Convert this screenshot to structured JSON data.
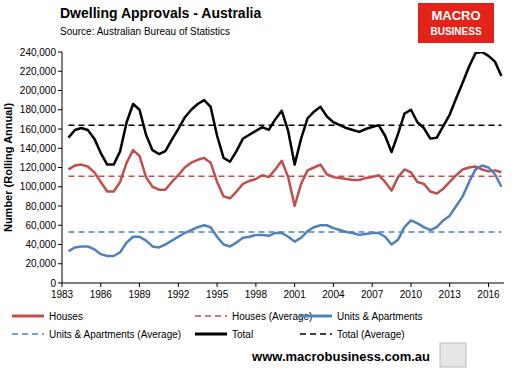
{
  "chart_data": {
    "type": "line",
    "title": "Dwelling Approvals - Australia",
    "subtitle": "Source: Australian Bureau of Statistics",
    "y_label": "Number (Rolling Annual)",
    "logo_text": [
      "MACRO",
      "BUSINESS"
    ],
    "footer": "www.macrobusiness.com.au",
    "grid": false,
    "legend": "bottom",
    "xlim": [
      1983,
      2017.2
    ],
    "xticks": [
      1983,
      1986,
      1989,
      1992,
      1995,
      1998,
      2001,
      2004,
      2007,
      2010,
      2013,
      2016
    ],
    "ylim": [
      0,
      240000
    ],
    "yticks": [
      0,
      {
        "value": 20000,
        "label": "20,000"
      },
      {
        "value": 40000,
        "label": "40,000"
      },
      {
        "value": 60000,
        "label": "60,000"
      },
      {
        "value": 80000,
        "label": "80,000"
      },
      {
        "value": 100000,
        "label": "100,000"
      },
      {
        "value": 120000,
        "label": "120,000"
      },
      {
        "value": 140000,
        "label": "140,000"
      },
      {
        "value": 160000,
        "label": "160,000"
      },
      {
        "value": 180000,
        "label": "180,000"
      },
      {
        "value": 200000,
        "label": "200,000"
      },
      {
        "value": 220000,
        "label": "220,000"
      },
      {
        "value": 240000,
        "label": "240,000"
      }
    ],
    "x": [
      1983.5,
      1984,
      1984.5,
      1985,
      1985.5,
      1986,
      1986.5,
      1987,
      1987.5,
      1988,
      1988.5,
      1989,
      1989.5,
      1990,
      1990.5,
      1991,
      1991.5,
      1992,
      1992.5,
      1993,
      1993.5,
      1994,
      1994.5,
      1995,
      1995.5,
      1996,
      1996.5,
      1997,
      1997.5,
      1998,
      1998.5,
      1999,
      1999.5,
      2000,
      2000.5,
      2001,
      2001.5,
      2002,
      2002.5,
      2003,
      2003.5,
      2004,
      2004.5,
      2005,
      2005.5,
      2006,
      2006.5,
      2007,
      2007.5,
      2008,
      2008.5,
      2009,
      2009.5,
      2010,
      2010.5,
      2011,
      2011.5,
      2012,
      2012.5,
      2013,
      2013.5,
      2014,
      2014.5,
      2015,
      2015.5,
      2016,
      2016.5,
      2017
    ],
    "series": [
      {
        "name": "Houses",
        "color": "#c0504d",
        "line_style": "solid",
        "values": [
          118000,
          122000,
          123000,
          121000,
          115000,
          105000,
          95000,
          95000,
          105000,
          125000,
          138000,
          132000,
          110000,
          100000,
          97000,
          97000,
          105000,
          112000,
          120000,
          125000,
          128000,
          130000,
          125000,
          105000,
          90000,
          88000,
          95000,
          103000,
          106000,
          108000,
          112000,
          110000,
          118000,
          127000,
          110000,
          80000,
          103000,
          117000,
          120000,
          123000,
          113000,
          110000,
          109000,
          108000,
          107000,
          107000,
          109000,
          110000,
          112000,
          105000,
          96000,
          110000,
          118000,
          115000,
          105000,
          103000,
          95000,
          93000,
          98000,
          105000,
          112000,
          118000,
          120000,
          121000,
          118000,
          116000,
          117000,
          115000
        ]
      },
      {
        "name": "Houses (Average)",
        "color": "#c0504d",
        "line_style": "dashed",
        "values": [
          111000,
          111000,
          111000,
          111000,
          111000,
          111000,
          111000,
          111000,
          111000,
          111000,
          111000,
          111000,
          111000,
          111000,
          111000,
          111000,
          111000,
          111000,
          111000,
          111000,
          111000,
          111000,
          111000,
          111000,
          111000,
          111000,
          111000,
          111000,
          111000,
          111000,
          111000,
          111000,
          111000,
          111000,
          111000,
          111000,
          111000,
          111000,
          111000,
          111000,
          111000,
          111000,
          111000,
          111000,
          111000,
          111000,
          111000,
          111000,
          111000,
          111000,
          111000,
          111000,
          111000,
          111000,
          111000,
          111000,
          111000,
          111000,
          111000,
          111000,
          111000,
          111000,
          111000,
          111000,
          111000,
          111000,
          111000,
          111000
        ]
      },
      {
        "name": "Units & Apartments",
        "color": "#4f81bd",
        "line_style": "solid",
        "values": [
          33000,
          37000,
          38000,
          38000,
          35000,
          30000,
          28000,
          28000,
          32000,
          42000,
          48000,
          48000,
          44000,
          38000,
          37000,
          40000,
          44000,
          48000,
          52000,
          55000,
          58000,
          60000,
          58000,
          48000,
          40000,
          38000,
          42000,
          47000,
          48000,
          50000,
          50000,
          49000,
          52000,
          52000,
          48000,
          43000,
          47000,
          54000,
          58000,
          60000,
          60000,
          57000,
          55000,
          53000,
          52000,
          50000,
          51000,
          52000,
          52000,
          48000,
          40000,
          45000,
          58000,
          65000,
          62000,
          58000,
          55000,
          58000,
          65000,
          70000,
          80000,
          90000,
          105000,
          118000,
          122000,
          120000,
          113000,
          100000
        ]
      },
      {
        "name": "Units & Apartments (Average)",
        "color": "#4f81bd",
        "line_style": "dashed",
        "values": [
          53000,
          53000,
          53000,
          53000,
          53000,
          53000,
          53000,
          53000,
          53000,
          53000,
          53000,
          53000,
          53000,
          53000,
          53000,
          53000,
          53000,
          53000,
          53000,
          53000,
          53000,
          53000,
          53000,
          53000,
          53000,
          53000,
          53000,
          53000,
          53000,
          53000,
          53000,
          53000,
          53000,
          53000,
          53000,
          53000,
          53000,
          53000,
          53000,
          53000,
          53000,
          53000,
          53000,
          53000,
          53000,
          53000,
          53000,
          53000,
          53000,
          53000,
          53000,
          53000,
          53000,
          53000,
          53000,
          53000,
          53000,
          53000,
          53000,
          53000,
          53000,
          53000,
          53000,
          53000,
          53000,
          53000,
          53000,
          53000
        ]
      },
      {
        "name": "Total",
        "color": "#000000",
        "line_style": "solid",
        "values": [
          151000,
          159000,
          161000,
          159000,
          150000,
          135000,
          123000,
          123000,
          137000,
          167000,
          186000,
          180000,
          154000,
          138000,
          134000,
          137000,
          149000,
          160000,
          172000,
          180000,
          186000,
          190000,
          183000,
          153000,
          130000,
          126000,
          137000,
          150000,
          154000,
          158000,
          162000,
          159000,
          170000,
          179000,
          158000,
          123000,
          150000,
          171000,
          178000,
          183000,
          173000,
          167000,
          164000,
          161000,
          159000,
          157000,
          160000,
          162000,
          164000,
          153000,
          136000,
          155000,
          176000,
          180000,
          167000,
          161000,
          150000,
          151000,
          163000,
          175000,
          192000,
          208000,
          225000,
          239000,
          240000,
          236000,
          230000,
          215000
        ]
      },
      {
        "name": "Total (Average)",
        "color": "#000000",
        "line_style": "dashed",
        "values": [
          164000,
          164000,
          164000,
          164000,
          164000,
          164000,
          164000,
          164000,
          164000,
          164000,
          164000,
          164000,
          164000,
          164000,
          164000,
          164000,
          164000,
          164000,
          164000,
          164000,
          164000,
          164000,
          164000,
          164000,
          164000,
          164000,
          164000,
          164000,
          164000,
          164000,
          164000,
          164000,
          164000,
          164000,
          164000,
          164000,
          164000,
          164000,
          164000,
          164000,
          164000,
          164000,
          164000,
          164000,
          164000,
          164000,
          164000,
          164000,
          164000,
          164000,
          164000,
          164000,
          164000,
          164000,
          164000,
          164000,
          164000,
          164000,
          164000,
          164000,
          164000,
          164000,
          164000,
          164000,
          164000,
          164000,
          164000,
          164000
        ]
      }
    ]
  }
}
